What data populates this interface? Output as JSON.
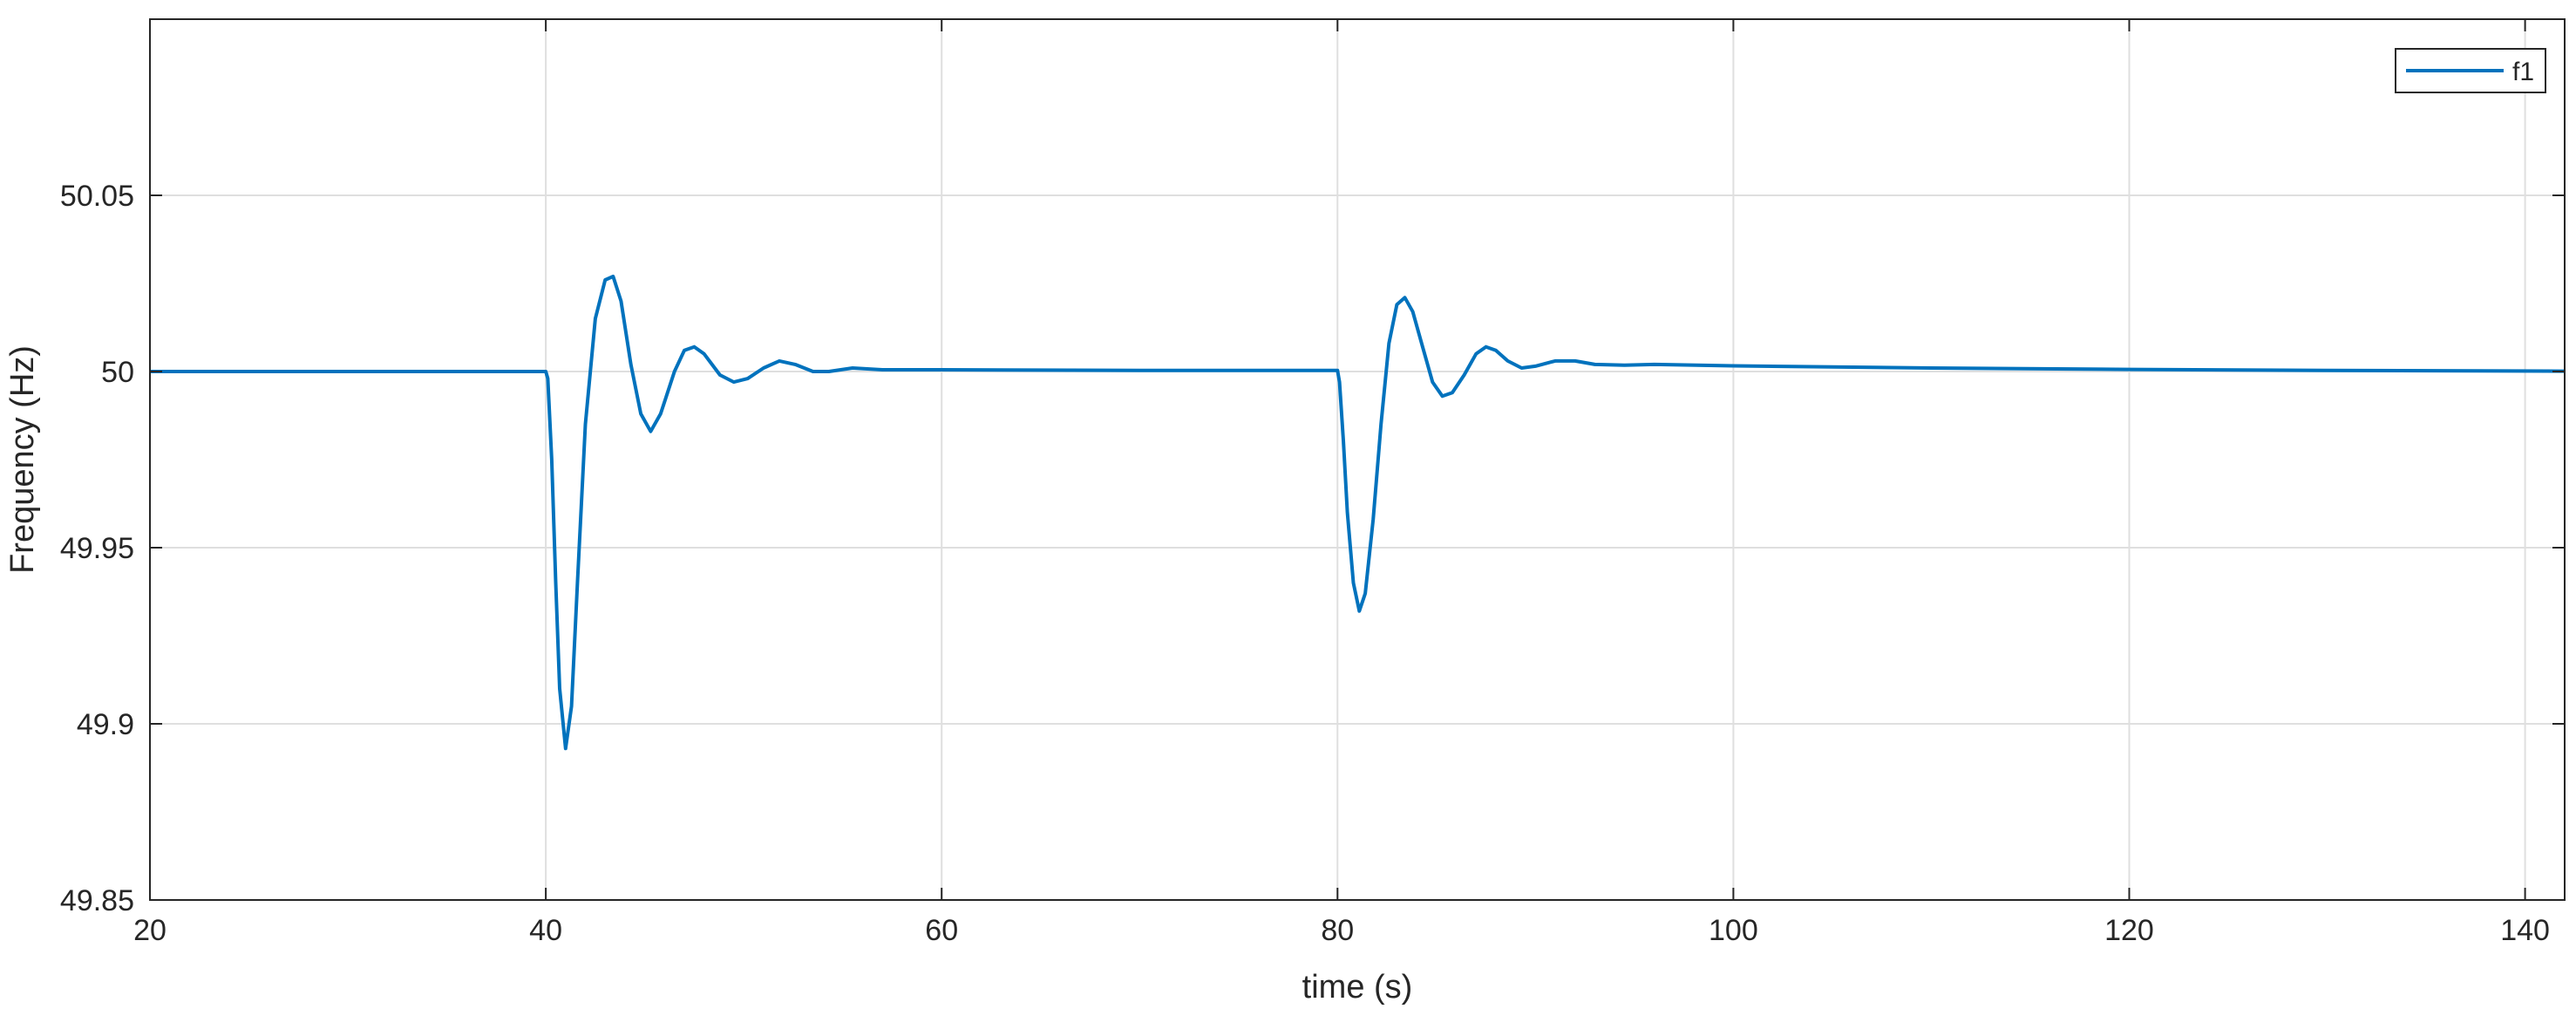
{
  "chart_data": {
    "type": "line",
    "xlabel": "time (s)",
    "ylabel": "Frequency (Hz)",
    "xlim": [
      20,
      142
    ],
    "ylim": [
      49.85,
      50.1
    ],
    "x_ticks": [
      20,
      40,
      60,
      80,
      100,
      120,
      140
    ],
    "x_tick_labels": [
      "20",
      "40",
      "60",
      "80",
      "100",
      "120",
      "140"
    ],
    "y_ticks": [
      49.85,
      49.9,
      49.95,
      50,
      50.05
    ],
    "y_tick_labels": [
      "49.85",
      "49.9",
      "49.95",
      "50",
      "50.05"
    ],
    "grid": true,
    "legend_position": "top-right",
    "series": [
      {
        "name": "f1",
        "color": "#0072BD",
        "points": [
          [
            20,
            50.0
          ],
          [
            40,
            50.0
          ],
          [
            40.1,
            49.998
          ],
          [
            40.3,
            49.975
          ],
          [
            40.5,
            49.94
          ],
          [
            40.7,
            49.91
          ],
          [
            41.0,
            49.893
          ],
          [
            41.3,
            49.905
          ],
          [
            41.6,
            49.94
          ],
          [
            42.0,
            49.985
          ],
          [
            42.5,
            50.015
          ],
          [
            43.0,
            50.026
          ],
          [
            43.4,
            50.027
          ],
          [
            43.8,
            50.02
          ],
          [
            44.3,
            50.002
          ],
          [
            44.8,
            49.988
          ],
          [
            45.3,
            49.983
          ],
          [
            45.8,
            49.988
          ],
          [
            46.5,
            50.0
          ],
          [
            47.0,
            50.006
          ],
          [
            47.5,
            50.007
          ],
          [
            48.0,
            50.005
          ],
          [
            48.8,
            49.999
          ],
          [
            49.5,
            49.997
          ],
          [
            50.2,
            49.998
          ],
          [
            51.0,
            50.001
          ],
          [
            51.8,
            50.003
          ],
          [
            52.6,
            50.002
          ],
          [
            53.5,
            50.0
          ],
          [
            54.3,
            50.0
          ],
          [
            55.5,
            50.001
          ],
          [
            57.0,
            50.0005
          ],
          [
            60,
            50.0005
          ],
          [
            70,
            50.0003
          ],
          [
            80,
            50.0003
          ],
          [
            80.1,
            49.997
          ],
          [
            80.3,
            49.98
          ],
          [
            80.5,
            49.96
          ],
          [
            80.8,
            49.94
          ],
          [
            81.1,
            49.932
          ],
          [
            81.4,
            49.937
          ],
          [
            81.8,
            49.958
          ],
          [
            82.2,
            49.985
          ],
          [
            82.6,
            50.008
          ],
          [
            83.0,
            50.019
          ],
          [
            83.4,
            50.021
          ],
          [
            83.8,
            50.017
          ],
          [
            84.3,
            50.007
          ],
          [
            84.8,
            49.997
          ],
          [
            85.3,
            49.993
          ],
          [
            85.8,
            49.994
          ],
          [
            86.4,
            49.999
          ],
          [
            87.0,
            50.005
          ],
          [
            87.5,
            50.007
          ],
          [
            88.0,
            50.006
          ],
          [
            88.6,
            50.003
          ],
          [
            89.3,
            50.001
          ],
          [
            90.0,
            50.0015
          ],
          [
            91.0,
            50.003
          ],
          [
            92.0,
            50.003
          ],
          [
            93.0,
            50.002
          ],
          [
            94.5,
            50.0018
          ],
          [
            96.0,
            50.002
          ],
          [
            100,
            50.0016
          ],
          [
            110,
            50.001
          ],
          [
            120,
            50.0006
          ],
          [
            130,
            50.0003
          ],
          [
            142,
            50.0001
          ]
        ]
      }
    ]
  }
}
